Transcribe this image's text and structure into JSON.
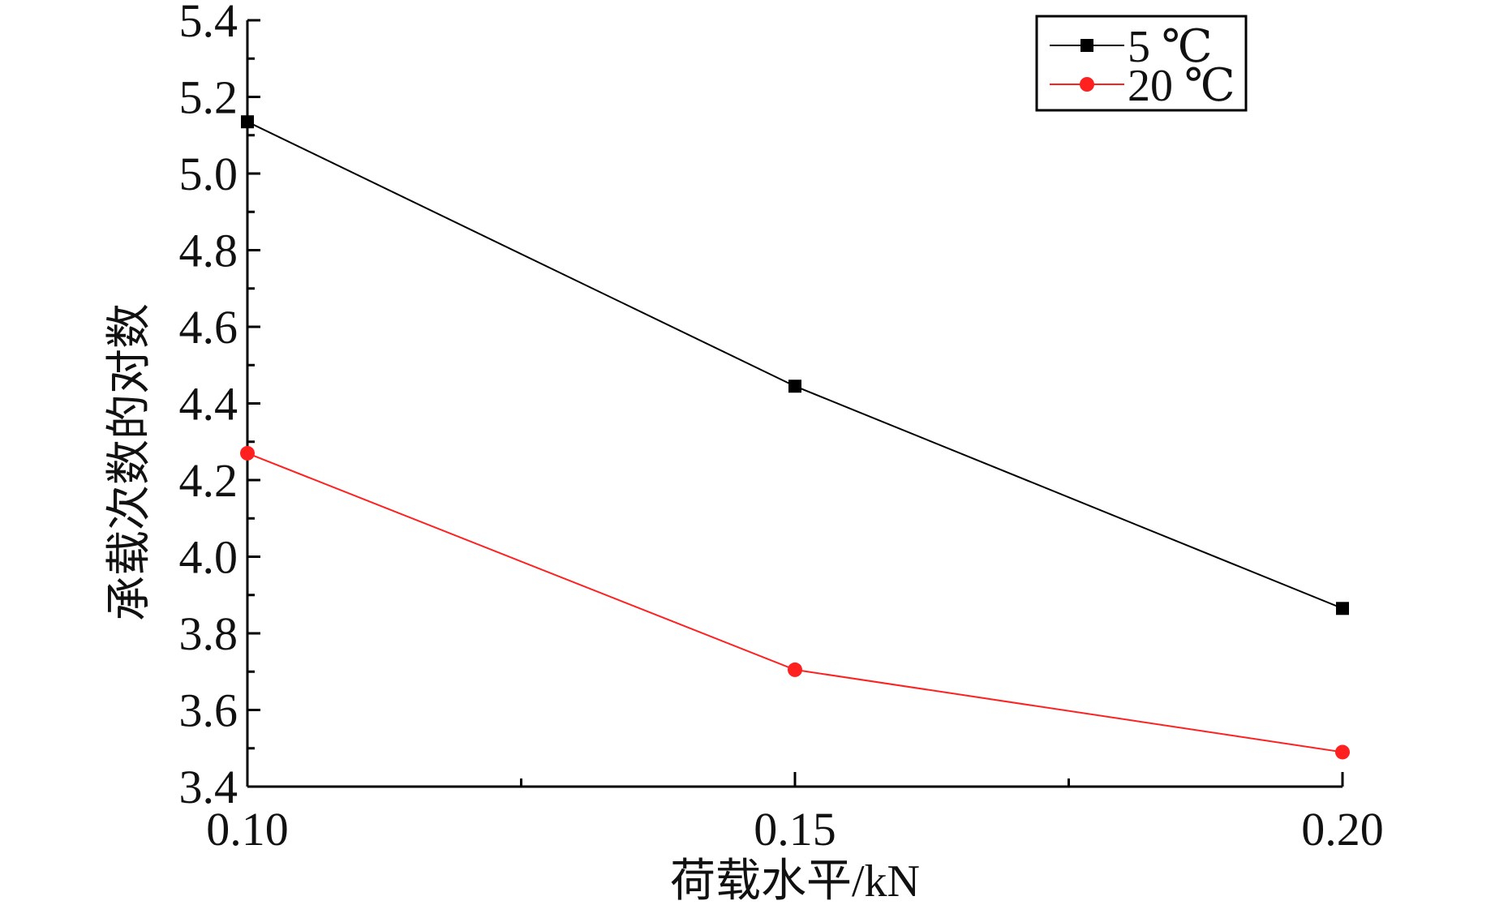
{
  "chart_data": {
    "type": "line",
    "title": "",
    "xlabel": "荷载水平/kN",
    "ylabel": "承载次数的对数",
    "x": [
      0.1,
      0.15,
      0.2
    ],
    "x_tick_labels": [
      "0.10",
      "0.15",
      "0.20"
    ],
    "xlim": [
      0.1,
      0.2
    ],
    "ylim": [
      3.4,
      5.4
    ],
    "y_tick_labels": [
      "3.4",
      "3.6",
      "3.8",
      "4.0",
      "4.2",
      "4.4",
      "4.6",
      "4.8",
      "5.0",
      "5.2",
      "5.4"
    ],
    "grid": false,
    "legend_position": "top-right",
    "series": [
      {
        "name": "5 ℃",
        "values": [
          5.135,
          4.445,
          3.865
        ],
        "color": "#000000",
        "marker": "square"
      },
      {
        "name": "20 ℃",
        "values": [
          4.27,
          3.705,
          3.49
        ],
        "color": "#ff2020",
        "marker": "circle"
      }
    ]
  }
}
